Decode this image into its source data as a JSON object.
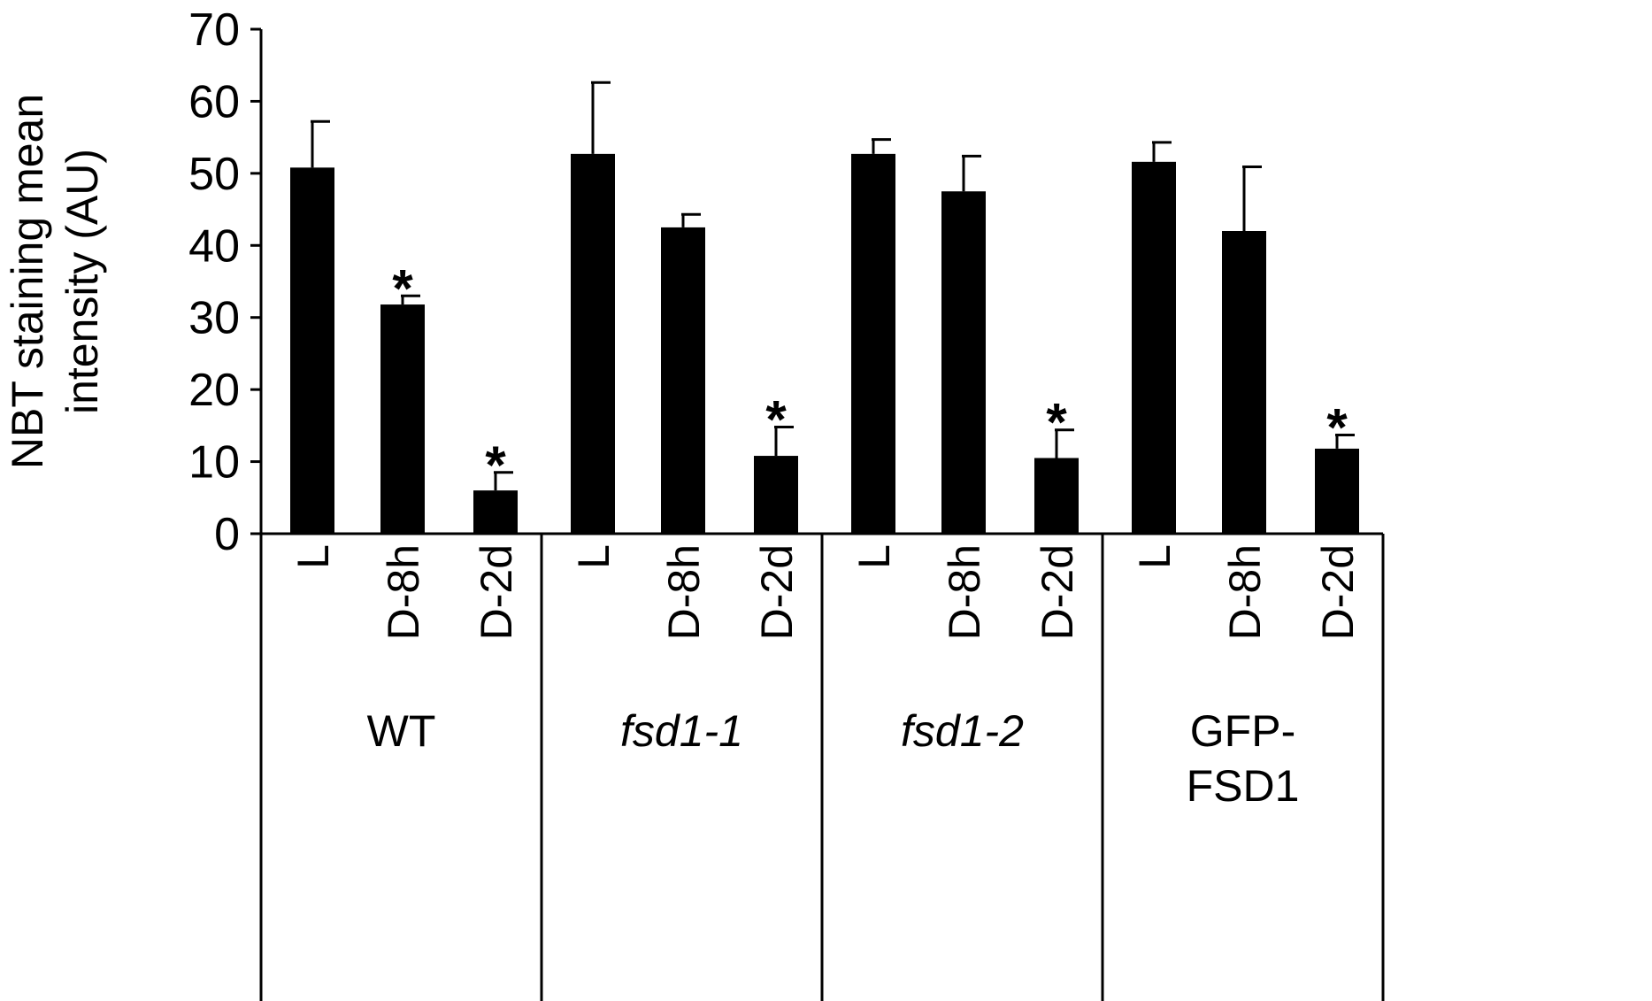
{
  "chart_data": {
    "type": "bar",
    "ylabel_lines": [
      "NBT staining mean",
      "intensity (AU)"
    ],
    "groups": [
      {
        "name": "WT",
        "italic": false,
        "categories": [
          "L",
          "D-8h",
          "D-2d"
        ]
      },
      {
        "name": "fsd1-1",
        "italic": true,
        "categories": [
          "L",
          "D-8h",
          "D-2d"
        ]
      },
      {
        "name": "fsd1-2",
        "italic": true,
        "categories": [
          "L",
          "D-8h",
          "D-2d"
        ]
      },
      {
        "name": "GFP-FSD1",
        "italic": false,
        "categories": [
          "L",
          "D-8h",
          "D-2d"
        ]
      }
    ],
    "series": [
      {
        "color": "#000000",
        "values": [
          50.8,
          31.8,
          6.0,
          52.7,
          42.5,
          10.8,
          52.7,
          47.5,
          10.5,
          51.6,
          42.0,
          11.8
        ],
        "errors": [
          6.4,
          1.2,
          2.5,
          9.9,
          1.8,
          4.0,
          2.0,
          4.9,
          3.9,
          2.7,
          8.9,
          1.9
        ],
        "markers": [
          null,
          "*",
          "*",
          null,
          null,
          "*",
          null,
          null,
          "*",
          null,
          null,
          "*"
        ]
      }
    ],
    "ylim": [
      0,
      70
    ],
    "yticks": [
      0,
      10,
      20,
      30,
      40,
      50,
      60,
      70
    ]
  }
}
